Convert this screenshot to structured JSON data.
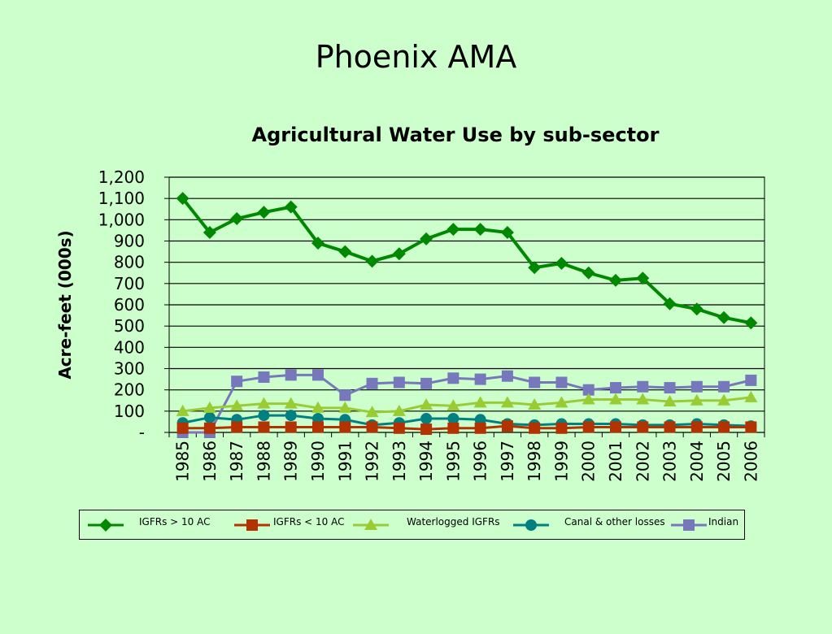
{
  "slide": {
    "title": "Phoenix AMA"
  },
  "chart_data": {
    "type": "line",
    "title": "Agricultural Water Use by sub-sector",
    "xlabel": "",
    "ylabel": "Acre-feet (000s)",
    "ylim": [
      0,
      1200
    ],
    "y_ticks": [
      0,
      100,
      200,
      300,
      400,
      500,
      600,
      700,
      800,
      900,
      1000,
      1100,
      1200
    ],
    "y_tick_labels": [
      "-",
      "100",
      "200",
      "300",
      "400",
      "500",
      "600",
      "700",
      "800",
      "900",
      "1,000",
      "1,100",
      "1,200"
    ],
    "categories": [
      "1985",
      "1986",
      "1987",
      "1988",
      "1989",
      "1990",
      "1991",
      "1992",
      "1993",
      "1994",
      "1995",
      "1996",
      "1997",
      "1998",
      "1999",
      "2000",
      "2001",
      "2002",
      "2003",
      "2004",
      "2005",
      "2006"
    ],
    "grid": true,
    "legend_position": "bottom",
    "series": [
      {
        "name": "IGFRs > 10 AC",
        "color": "#008800",
        "marker": "diamond",
        "values": [
          1100,
          940,
          1005,
          1035,
          1060,
          890,
          850,
          805,
          840,
          910,
          955,
          955,
          940,
          775,
          795,
          750,
          715,
          725,
          605,
          580,
          540,
          515
        ]
      },
      {
        "name": "IGFRs < 10 AC",
        "color": "#b33300",
        "marker": "square",
        "values": [
          20,
          20,
          25,
          25,
          25,
          25,
          25,
          25,
          20,
          15,
          20,
          20,
          30,
          20,
          20,
          25,
          25,
          25,
          25,
          25,
          25,
          25
        ]
      },
      {
        "name": "Waterlogged IGFRs",
        "color": "#99cc33",
        "marker": "triangle",
        "values": [
          100,
          115,
          125,
          135,
          135,
          115,
          115,
          95,
          100,
          130,
          125,
          140,
          140,
          130,
          140,
          155,
          155,
          155,
          145,
          150,
          150,
          165
        ]
      },
      {
        "name": "Canal & other losses",
        "color": "#008080",
        "marker": "circle",
        "values": [
          45,
          70,
          60,
          80,
          80,
          65,
          60,
          35,
          45,
          65,
          65,
          60,
          40,
          35,
          40,
          40,
          40,
          35,
          35,
          40,
          35,
          30
        ]
      },
      {
        "name": "Indian",
        "color": "#7777bb",
        "marker": "square",
        "values": [
          0,
          0,
          240,
          260,
          270,
          270,
          175,
          230,
          235,
          230,
          255,
          250,
          265,
          235,
          235,
          200,
          210,
          215,
          210,
          215,
          215,
          245
        ]
      }
    ]
  }
}
